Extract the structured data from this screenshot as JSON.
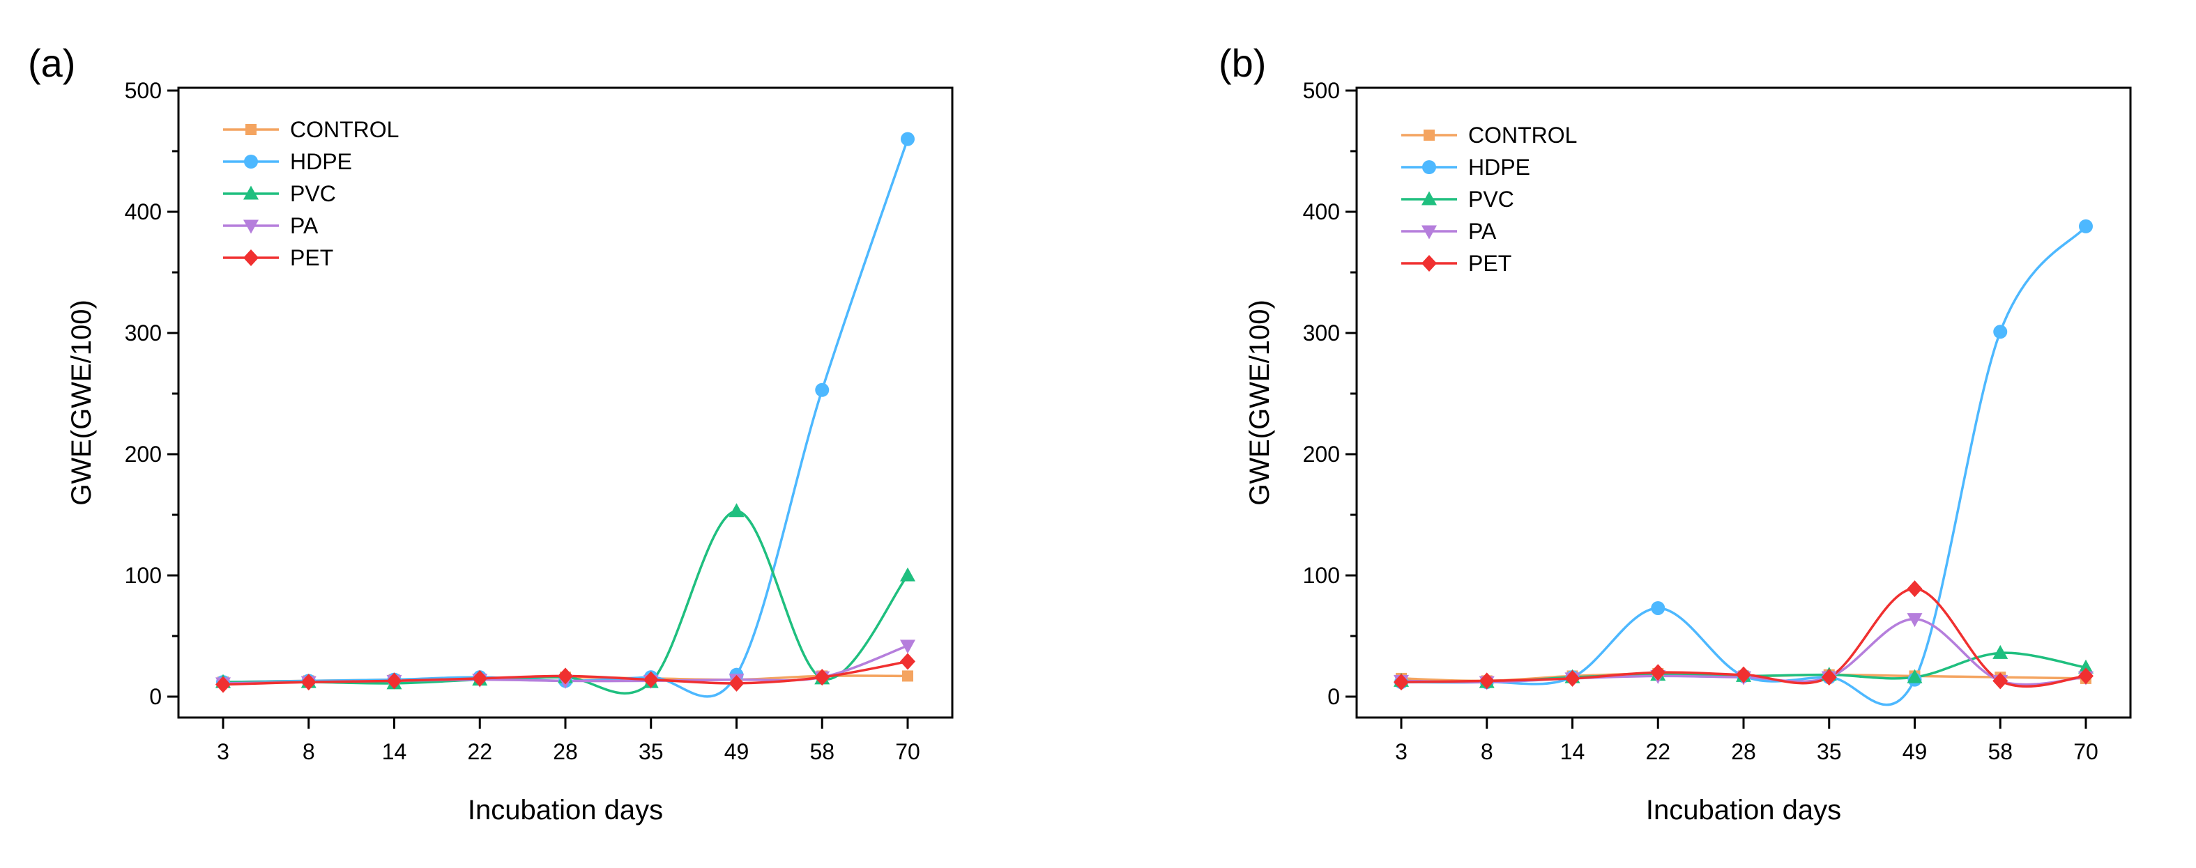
{
  "panels": [
    {
      "label": "(a)"
    },
    {
      "label": "(b)"
    }
  ],
  "chart_data": [
    {
      "type": "line",
      "panel": "(a)",
      "xlabel": "Incubation days",
      "ylabel": "GWE(GWE/100)",
      "categories": [
        "3",
        "8",
        "14",
        "22",
        "28",
        "35",
        "49",
        "58",
        "70"
      ],
      "ylim": [
        0,
        500
      ],
      "yticks": [
        0,
        100,
        200,
        300,
        400,
        500
      ],
      "legend_position": "top-left",
      "series": [
        {
          "name": "CONTROL",
          "color": "#f4a460",
          "marker": "square",
          "values": [
            12,
            13,
            14,
            15,
            16,
            15,
            14,
            17,
            17
          ]
        },
        {
          "name": "HDPE",
          "color": "#4db8ff",
          "marker": "circle",
          "values": [
            12,
            13,
            14,
            16,
            13,
            16,
            18,
            253,
            460
          ]
        },
        {
          "name": "PVC",
          "color": "#1fbf7f",
          "marker": "triangle-up",
          "values": [
            12,
            12,
            11,
            14,
            16,
            12,
            153,
            15,
            100
          ]
        },
        {
          "name": "PA",
          "color": "#b57edc",
          "marker": "triangle-down",
          "values": [
            11,
            12,
            13,
            14,
            13,
            13,
            14,
            16,
            42
          ]
        },
        {
          "name": "PET",
          "color": "#f03030",
          "marker": "diamond",
          "values": [
            10,
            12,
            13,
            15,
            17,
            14,
            11,
            16,
            29
          ]
        }
      ]
    },
    {
      "type": "line",
      "panel": "(b)",
      "xlabel": "Incubation days",
      "ylabel": "GWE(GWE/100)",
      "categories": [
        "3",
        "8",
        "14",
        "22",
        "28",
        "35",
        "49",
        "58",
        "70"
      ],
      "ylim": [
        0,
        500
      ],
      "yticks": [
        0,
        100,
        200,
        300,
        400,
        500
      ],
      "legend_position": "top-left",
      "series": [
        {
          "name": "CONTROL",
          "color": "#f4a460",
          "marker": "square",
          "values": [
            15,
            13,
            17,
            19,
            17,
            18,
            17,
            16,
            15
          ]
        },
        {
          "name": "HDPE",
          "color": "#4db8ff",
          "marker": "circle",
          "values": [
            12,
            12,
            16,
            73,
            17,
            16,
            14,
            301,
            388
          ]
        },
        {
          "name": "PVC",
          "color": "#1fbf7f",
          "marker": "triangle-up",
          "values": [
            13,
            12,
            16,
            18,
            17,
            18,
            16,
            36,
            24
          ]
        },
        {
          "name": "PA",
          "color": "#b57edc",
          "marker": "triangle-down",
          "values": [
            13,
            12,
            15,
            17,
            16,
            16,
            64,
            13,
            16
          ]
        },
        {
          "name": "PET",
          "color": "#f03030",
          "marker": "diamond",
          "values": [
            12,
            13,
            15,
            20,
            18,
            16,
            89,
            13,
            17
          ]
        }
      ]
    }
  ]
}
